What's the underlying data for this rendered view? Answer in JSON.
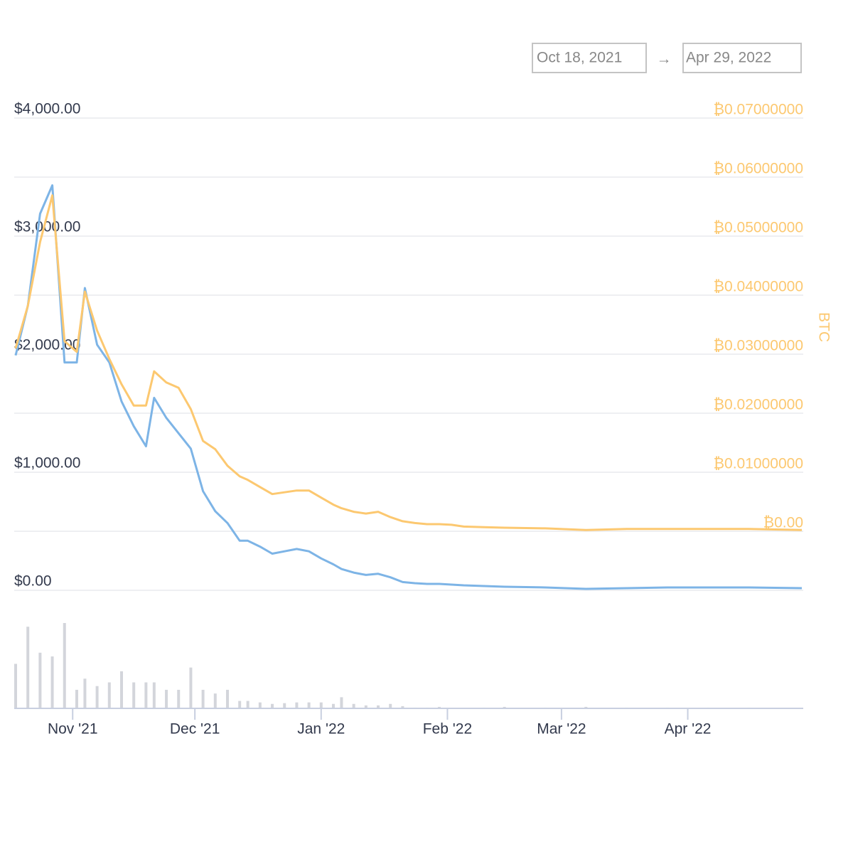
{
  "date_range": {
    "start": "Oct 18, 2021",
    "separator": "→",
    "end": "Apr 29, 2022"
  },
  "chart_data": {
    "type": "line",
    "y2_label": "BTC",
    "x": [
      "2021-10-18",
      "2021-10-21",
      "2021-10-24",
      "2021-10-27",
      "2021-10-30",
      "2021-11-02",
      "2021-11-04",
      "2021-11-07",
      "2021-11-10",
      "2021-11-13",
      "2021-11-16",
      "2021-11-19",
      "2021-11-21",
      "2021-11-24",
      "2021-11-27",
      "2021-11-30",
      "2021-12-03",
      "2021-12-06",
      "2021-12-09",
      "2021-12-12",
      "2021-12-14",
      "2021-12-17",
      "2021-12-20",
      "2021-12-23",
      "2021-12-26",
      "2021-12-29",
      "2022-01-01",
      "2022-01-04",
      "2022-01-06",
      "2022-01-09",
      "2022-01-12",
      "2022-01-15",
      "2022-01-18",
      "2022-01-21",
      "2022-01-24",
      "2022-01-27",
      "2022-01-30",
      "2022-02-02",
      "2022-02-05",
      "2022-02-10",
      "2022-02-15",
      "2022-02-25",
      "2022-03-07",
      "2022-03-17",
      "2022-03-27",
      "2022-04-06",
      "2022-04-16",
      "2022-04-29"
    ],
    "xlim": [
      "2021-10-18",
      "2022-04-29"
    ],
    "xticks": [
      {
        "value": "2021-11-01",
        "label": "Nov '21"
      },
      {
        "value": "2021-12-01",
        "label": "Dec '21"
      },
      {
        "value": "2022-01-01",
        "label": "Jan '22"
      },
      {
        "value": "2022-02-01",
        "label": "Feb '22"
      },
      {
        "value": "2022-03-01",
        "label": "Mar '22"
      },
      {
        "value": "2022-04-01",
        "label": "Apr '22"
      }
    ],
    "ylim": [
      0,
      4000
    ],
    "yticks": [
      {
        "value": 0,
        "label": "$0.00"
      },
      {
        "value": 1000,
        "label": "$1,000.00"
      },
      {
        "value": 2000,
        "label": "$2,000.00"
      },
      {
        "value": 3000,
        "label": "$3,000.00"
      },
      {
        "value": 4000,
        "label": "$4,000.00"
      }
    ],
    "y2lim": [
      -0.01,
      0.07
    ],
    "y2ticks": [
      {
        "value": 0,
        "label": "₿0.00"
      },
      {
        "value": 0.01,
        "label": "₿0.01000000"
      },
      {
        "value": 0.02,
        "label": "₿0.02000000"
      },
      {
        "value": 0.03,
        "label": "₿0.03000000"
      },
      {
        "value": 0.04,
        "label": "₿0.04000000"
      },
      {
        "value": 0.05,
        "label": "₿0.05000000"
      },
      {
        "value": 0.06,
        "label": "₿0.06000000"
      },
      {
        "value": 0.07,
        "label": "₿0.07000000"
      }
    ],
    "grid": true,
    "series": [
      {
        "color": "#7db4e6",
        "values": [
          1990,
          2410,
          3190,
          3430,
          1930,
          1930,
          2560,
          2080,
          1930,
          1600,
          1390,
          1220,
          1630,
          1460,
          1330,
          1200,
          840,
          670,
          570,
          420,
          420,
          370,
          310,
          330,
          350,
          330,
          270,
          220,
          180,
          150,
          130,
          140,
          110,
          70,
          60,
          54,
          54,
          48,
          42,
          36,
          30,
          24,
          12,
          18,
          24,
          24,
          24,
          18
        ]
      },
      {
        "color": "#fcc870",
        "axis": "y2",
        "values": [
          0.031,
          0.0382,
          0.049,
          0.0569,
          0.0322,
          0.0304,
          0.0406,
          0.034,
          0.0292,
          0.0249,
          0.0213,
          0.0213,
          0.0271,
          0.0252,
          0.0243,
          0.0207,
          0.0153,
          0.0139,
          0.0111,
          0.0093,
          0.0087,
          0.0075,
          0.0063,
          0.0066,
          0.0069,
          0.0069,
          0.0057,
          0.0045,
          0.0039,
          0.0033,
          0.003,
          0.0033,
          0.0024,
          0.0017,
          0.0014,
          0.0012,
          0.0012,
          0.0011,
          0.0008,
          0.0007,
          0.0006,
          0.0005,
          0.0002,
          0.0004,
          0.0004,
          0.0004,
          0.0004,
          0.0002
        ]
      }
    ],
    "volume": {
      "color": "#d3d5db",
      "values": [
        60,
        110,
        75,
        70,
        115,
        25,
        40,
        30,
        35,
        50,
        35,
        35,
        35,
        25,
        25,
        55,
        25,
        20,
        25,
        10,
        10,
        8,
        6,
        7,
        8,
        8,
        8,
        6,
        15,
        6,
        4,
        4,
        6,
        3,
        1,
        1,
        2,
        0,
        0,
        1,
        2,
        1,
        2,
        1,
        1,
        1,
        1,
        0
      ]
    }
  }
}
